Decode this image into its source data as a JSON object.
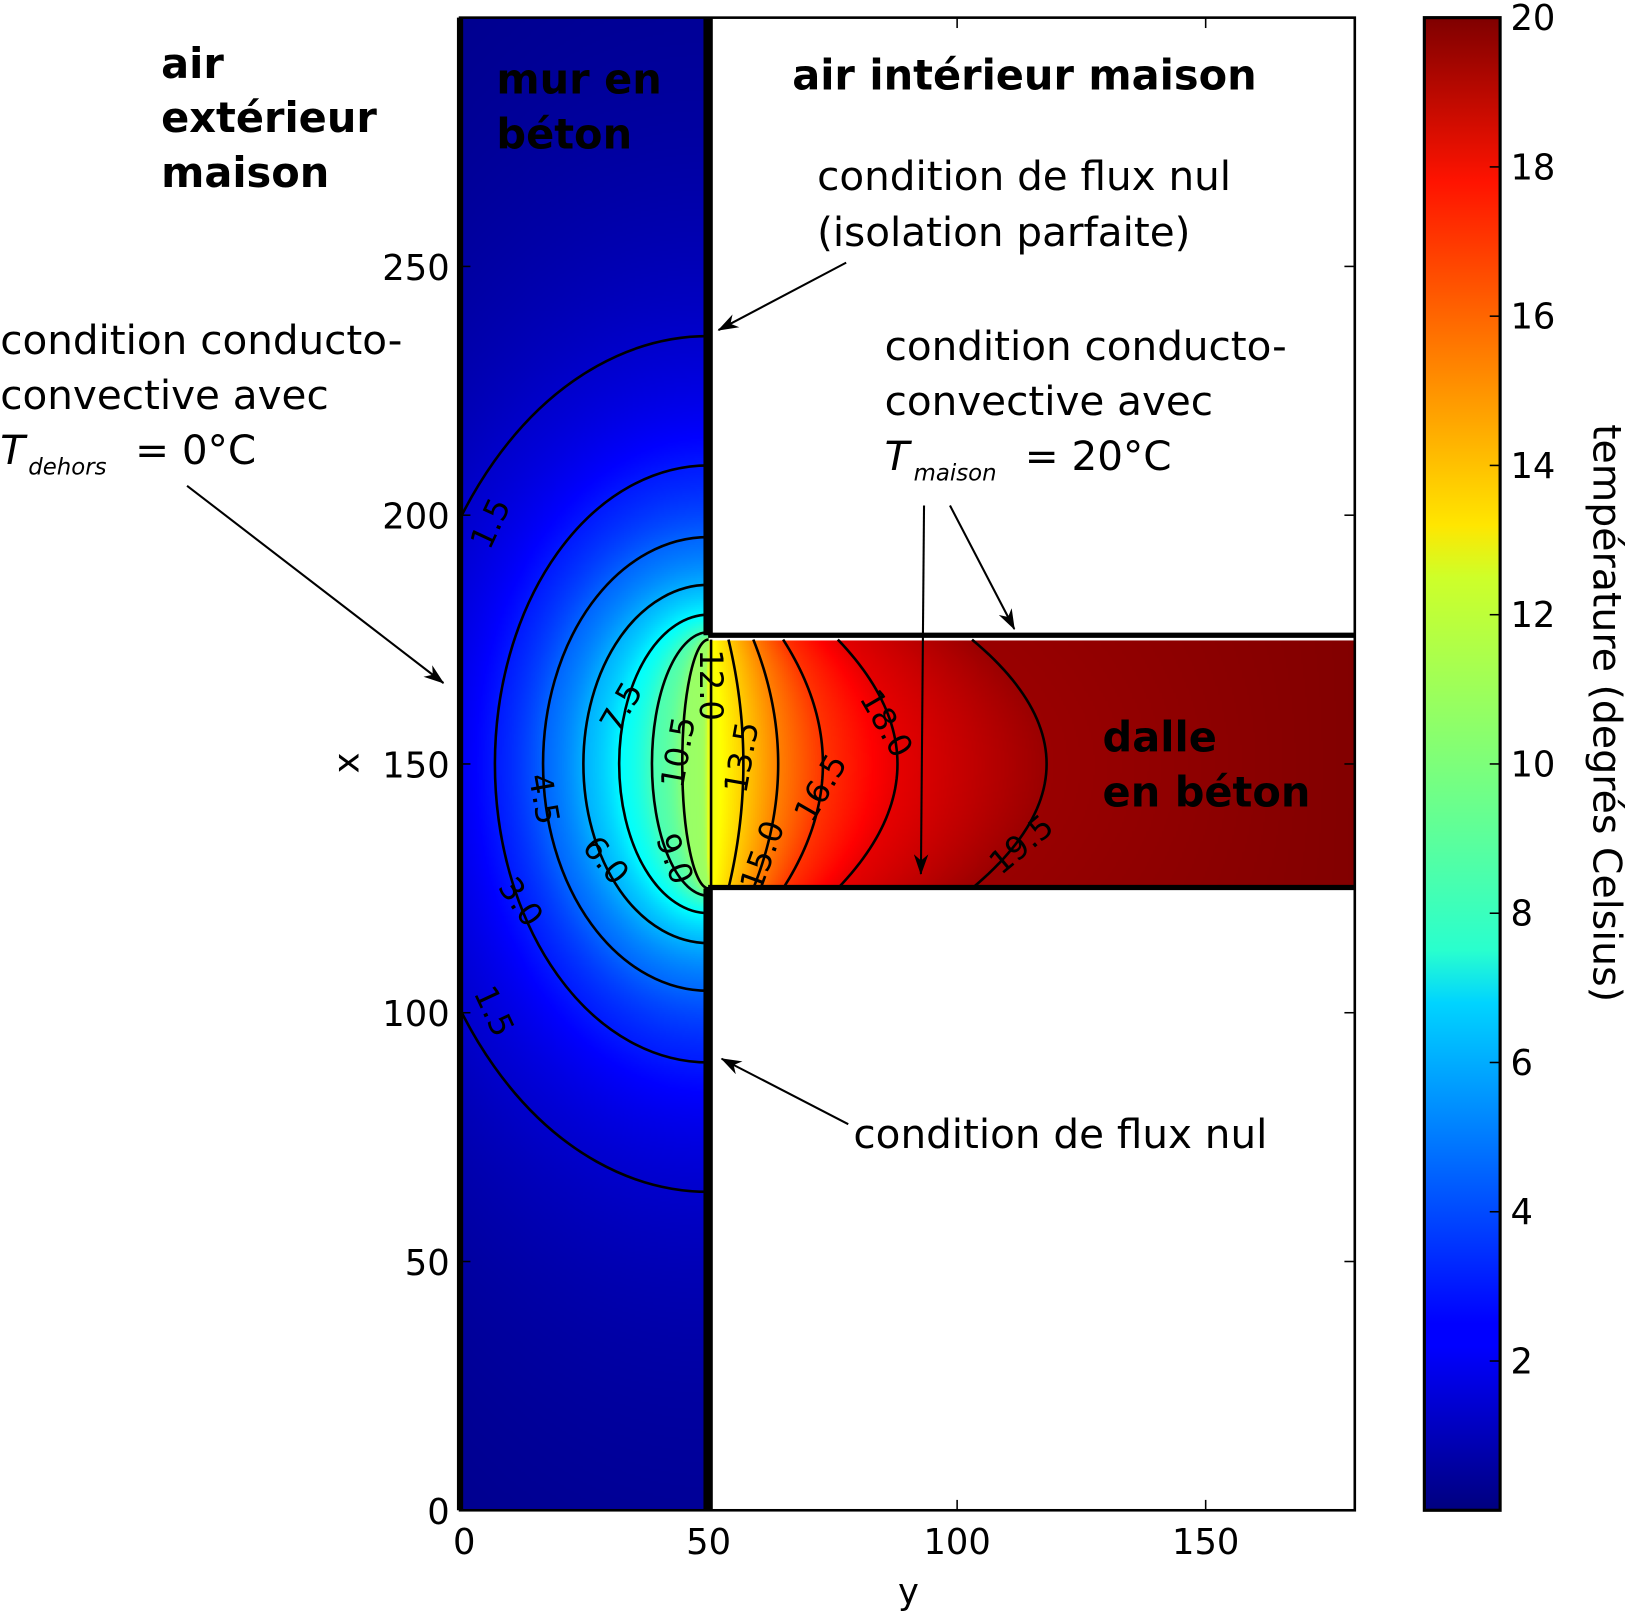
{
  "chart_data": {
    "type": "heatmap",
    "subtype": "temperature field with labelled contour lines",
    "xlabel": "y",
    "ylabel": "x",
    "xlim": [
      0,
      180
    ],
    "ylim": [
      0,
      300
    ],
    "xticks": [
      "0",
      "50",
      "100",
      "150"
    ],
    "xtick_values": [
      0,
      50,
      100,
      150
    ],
    "yticks": [
      "0",
      "50",
      "100",
      "150",
      "200",
      "250"
    ],
    "ytick_values": [
      0,
      50,
      100,
      150,
      200,
      250
    ],
    "colormap": "jet",
    "colorbar": {
      "label": "température (degrés Celsius)",
      "range": [
        0,
        20
      ],
      "ticks": [
        "2",
        "4",
        "6",
        "8",
        "10",
        "12",
        "14",
        "16",
        "18",
        "20"
      ],
      "tick_values": [
        2,
        4,
        6,
        8,
        10,
        12,
        14,
        16,
        18,
        20
      ]
    },
    "domains": {
      "wall": {
        "y": [
          0,
          50
        ],
        "x": [
          0,
          300
        ]
      },
      "slab": {
        "y": [
          50,
          180
        ],
        "x": [
          125,
          175
        ]
      }
    },
    "contour_levels": [
      1.5,
      3.0,
      4.5,
      6.0,
      7.5,
      9.0,
      10.5,
      12.0,
      13.5,
      15.0,
      16.5,
      18.0,
      19.5
    ],
    "contour_labels": [
      "1.5",
      "1.5",
      "3.0",
      "4.5",
      "6.0",
      "7.5",
      "9.0",
      "10.5",
      "12.0",
      "13.5",
      "15.0",
      "16.5",
      "18.0",
      "19.5"
    ],
    "annotations": {
      "outside_air": [
        "air",
        "extérieur",
        "maison"
      ],
      "wall": [
        "mur en",
        "béton"
      ],
      "inside_air": "air intérieur maison",
      "top_flux": [
        "condition de flux nul",
        "(isolation parfaite)"
      ],
      "left_conv": [
        "condition conducto-",
        "convective avec"
      ],
      "left_T": "T",
      "left_T_sub": "dehors",
      "left_T_val": "= 0°C",
      "right_conv": [
        "condition conducto-",
        "convective avec"
      ],
      "right_T": "T",
      "right_T_sub": "maison",
      "right_T_val": "= 20°C",
      "slab": [
        "dalle",
        "en béton"
      ],
      "bottom_flux": "condition de flux nul"
    }
  }
}
